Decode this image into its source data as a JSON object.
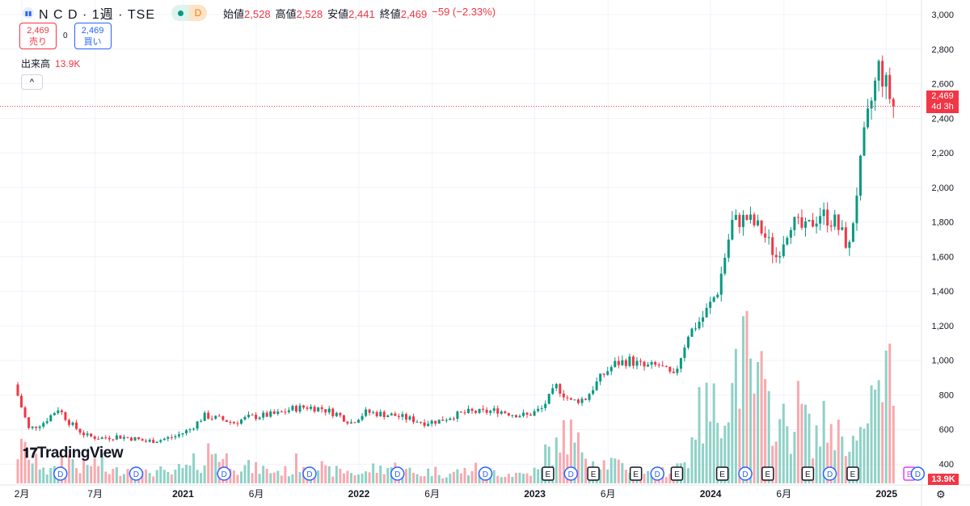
{
  "header": {
    "symbol": "N C D · 1週 · TSE",
    "open_label": "始値",
    "open": "2,528",
    "high_label": "高値",
    "high": "2,528",
    "low_label": "安値",
    "low": "2,441",
    "close_label": "終値",
    "close": "2,469",
    "change": "−59 (−2.33%)",
    "badge": "D"
  },
  "trade": {
    "sell_price": "2,469",
    "sell_label": "売り",
    "spread": "0",
    "buy_price": "2,469",
    "buy_label": "買い"
  },
  "volume": {
    "label": "出来高",
    "value": "13.9K"
  },
  "collapse_icon": "chevron-up-icon",
  "brand": "TradingView",
  "price_label": {
    "price": "2,469",
    "countdown": "4d 3h"
  },
  "volume_label": "13.9K",
  "colors": {
    "up": "#089981",
    "down": "#f23645",
    "up_vol": "#8fd1c6",
    "down_vol": "#f7a9ae",
    "dividend": "#2962ff",
    "earnings": "#131722",
    "earnings_future": "#e040fb"
  },
  "chart_data": {
    "type": "candlestick",
    "interval": "1 week",
    "yticks": [
      400,
      600,
      800,
      1000,
      1200,
      1400,
      1600,
      1800,
      2000,
      2200,
      2400,
      2600,
      2800,
      3000
    ],
    "ylim": [
      400,
      3000
    ],
    "xticks": [
      {
        "label": "2月",
        "date": "2020-02"
      },
      {
        "label": "7月",
        "date": "2020-07"
      },
      {
        "label": "2021",
        "date": "2021-01"
      },
      {
        "label": "6月",
        "date": "2021-06"
      },
      {
        "label": "2022",
        "date": "2022-01"
      },
      {
        "label": "6月",
        "date": "2022-06"
      },
      {
        "label": "2023",
        "date": "2023-01"
      },
      {
        "label": "6月",
        "date": "2023-06"
      },
      {
        "label": "2024",
        "date": "2024-01"
      },
      {
        "label": "6月",
        "date": "2024-06"
      },
      {
        "label": "2025",
        "date": "2025-01"
      }
    ],
    "monthly_close": {
      "start": "2020-02",
      "values": [
        860,
        600,
        640,
        720,
        620,
        560,
        550,
        560,
        550,
        530,
        540,
        560,
        600,
        680,
        660,
        640,
        670,
        680,
        690,
        720,
        730,
        720,
        690,
        640,
        700,
        690,
        680,
        660,
        640,
        650,
        680,
        700,
        700,
        710,
        690,
        680,
        720,
        850,
        760,
        780,
        900,
        980,
        1000,
        960,
        970,
        900,
        1150,
        1250,
        1400,
        1800,
        1820,
        1750,
        1600,
        1800,
        1750,
        1850,
        1800,
        1650,
        2300,
        2700,
        2469
      ]
    },
    "monthly_volume_k": [
      40,
      25,
      15,
      30,
      20,
      25,
      15,
      18,
      12,
      15,
      12,
      18,
      25,
      40,
      30,
      20,
      18,
      15,
      15,
      25,
      20,
      15,
      15,
      12,
      18,
      20,
      15,
      12,
      15,
      12,
      15,
      18,
      15,
      12,
      12,
      15,
      40,
      60,
      45,
      30,
      25,
      20,
      15,
      12,
      15,
      25,
      80,
      90,
      110,
      150,
      120,
      90,
      70,
      90,
      60,
      70,
      60,
      50,
      100,
      130,
      60
    ],
    "last_price": 2469,
    "markers": [
      {
        "type": "D",
        "date": "2020-04-20"
      },
      {
        "type": "D",
        "date": "2020-09-25"
      },
      {
        "type": "D",
        "date": "2021-03-25"
      },
      {
        "type": "D",
        "date": "2021-09-20"
      },
      {
        "type": "D",
        "date": "2022-03-20"
      },
      {
        "type": "D",
        "date": "2022-09-20"
      },
      {
        "type": "E",
        "date": "2023-01-28"
      },
      {
        "type": "D",
        "date": "2023-03-15"
      },
      {
        "type": "E",
        "date": "2023-05-01"
      },
      {
        "type": "E",
        "date": "2023-07-28"
      },
      {
        "type": "D",
        "date": "2023-09-12"
      },
      {
        "type": "E",
        "date": "2023-10-22"
      },
      {
        "type": "E",
        "date": "2024-01-25"
      },
      {
        "type": "D",
        "date": "2024-03-12"
      },
      {
        "type": "E",
        "date": "2024-04-28"
      },
      {
        "type": "E",
        "date": "2024-07-20"
      },
      {
        "type": "D",
        "date": "2024-09-05"
      },
      {
        "type": "E",
        "date": "2024-10-22"
      },
      {
        "type": "E",
        "date": "2025-02-18",
        "future": true
      },
      {
        "type": "D",
        "date": "2025-03-05"
      }
    ]
  }
}
